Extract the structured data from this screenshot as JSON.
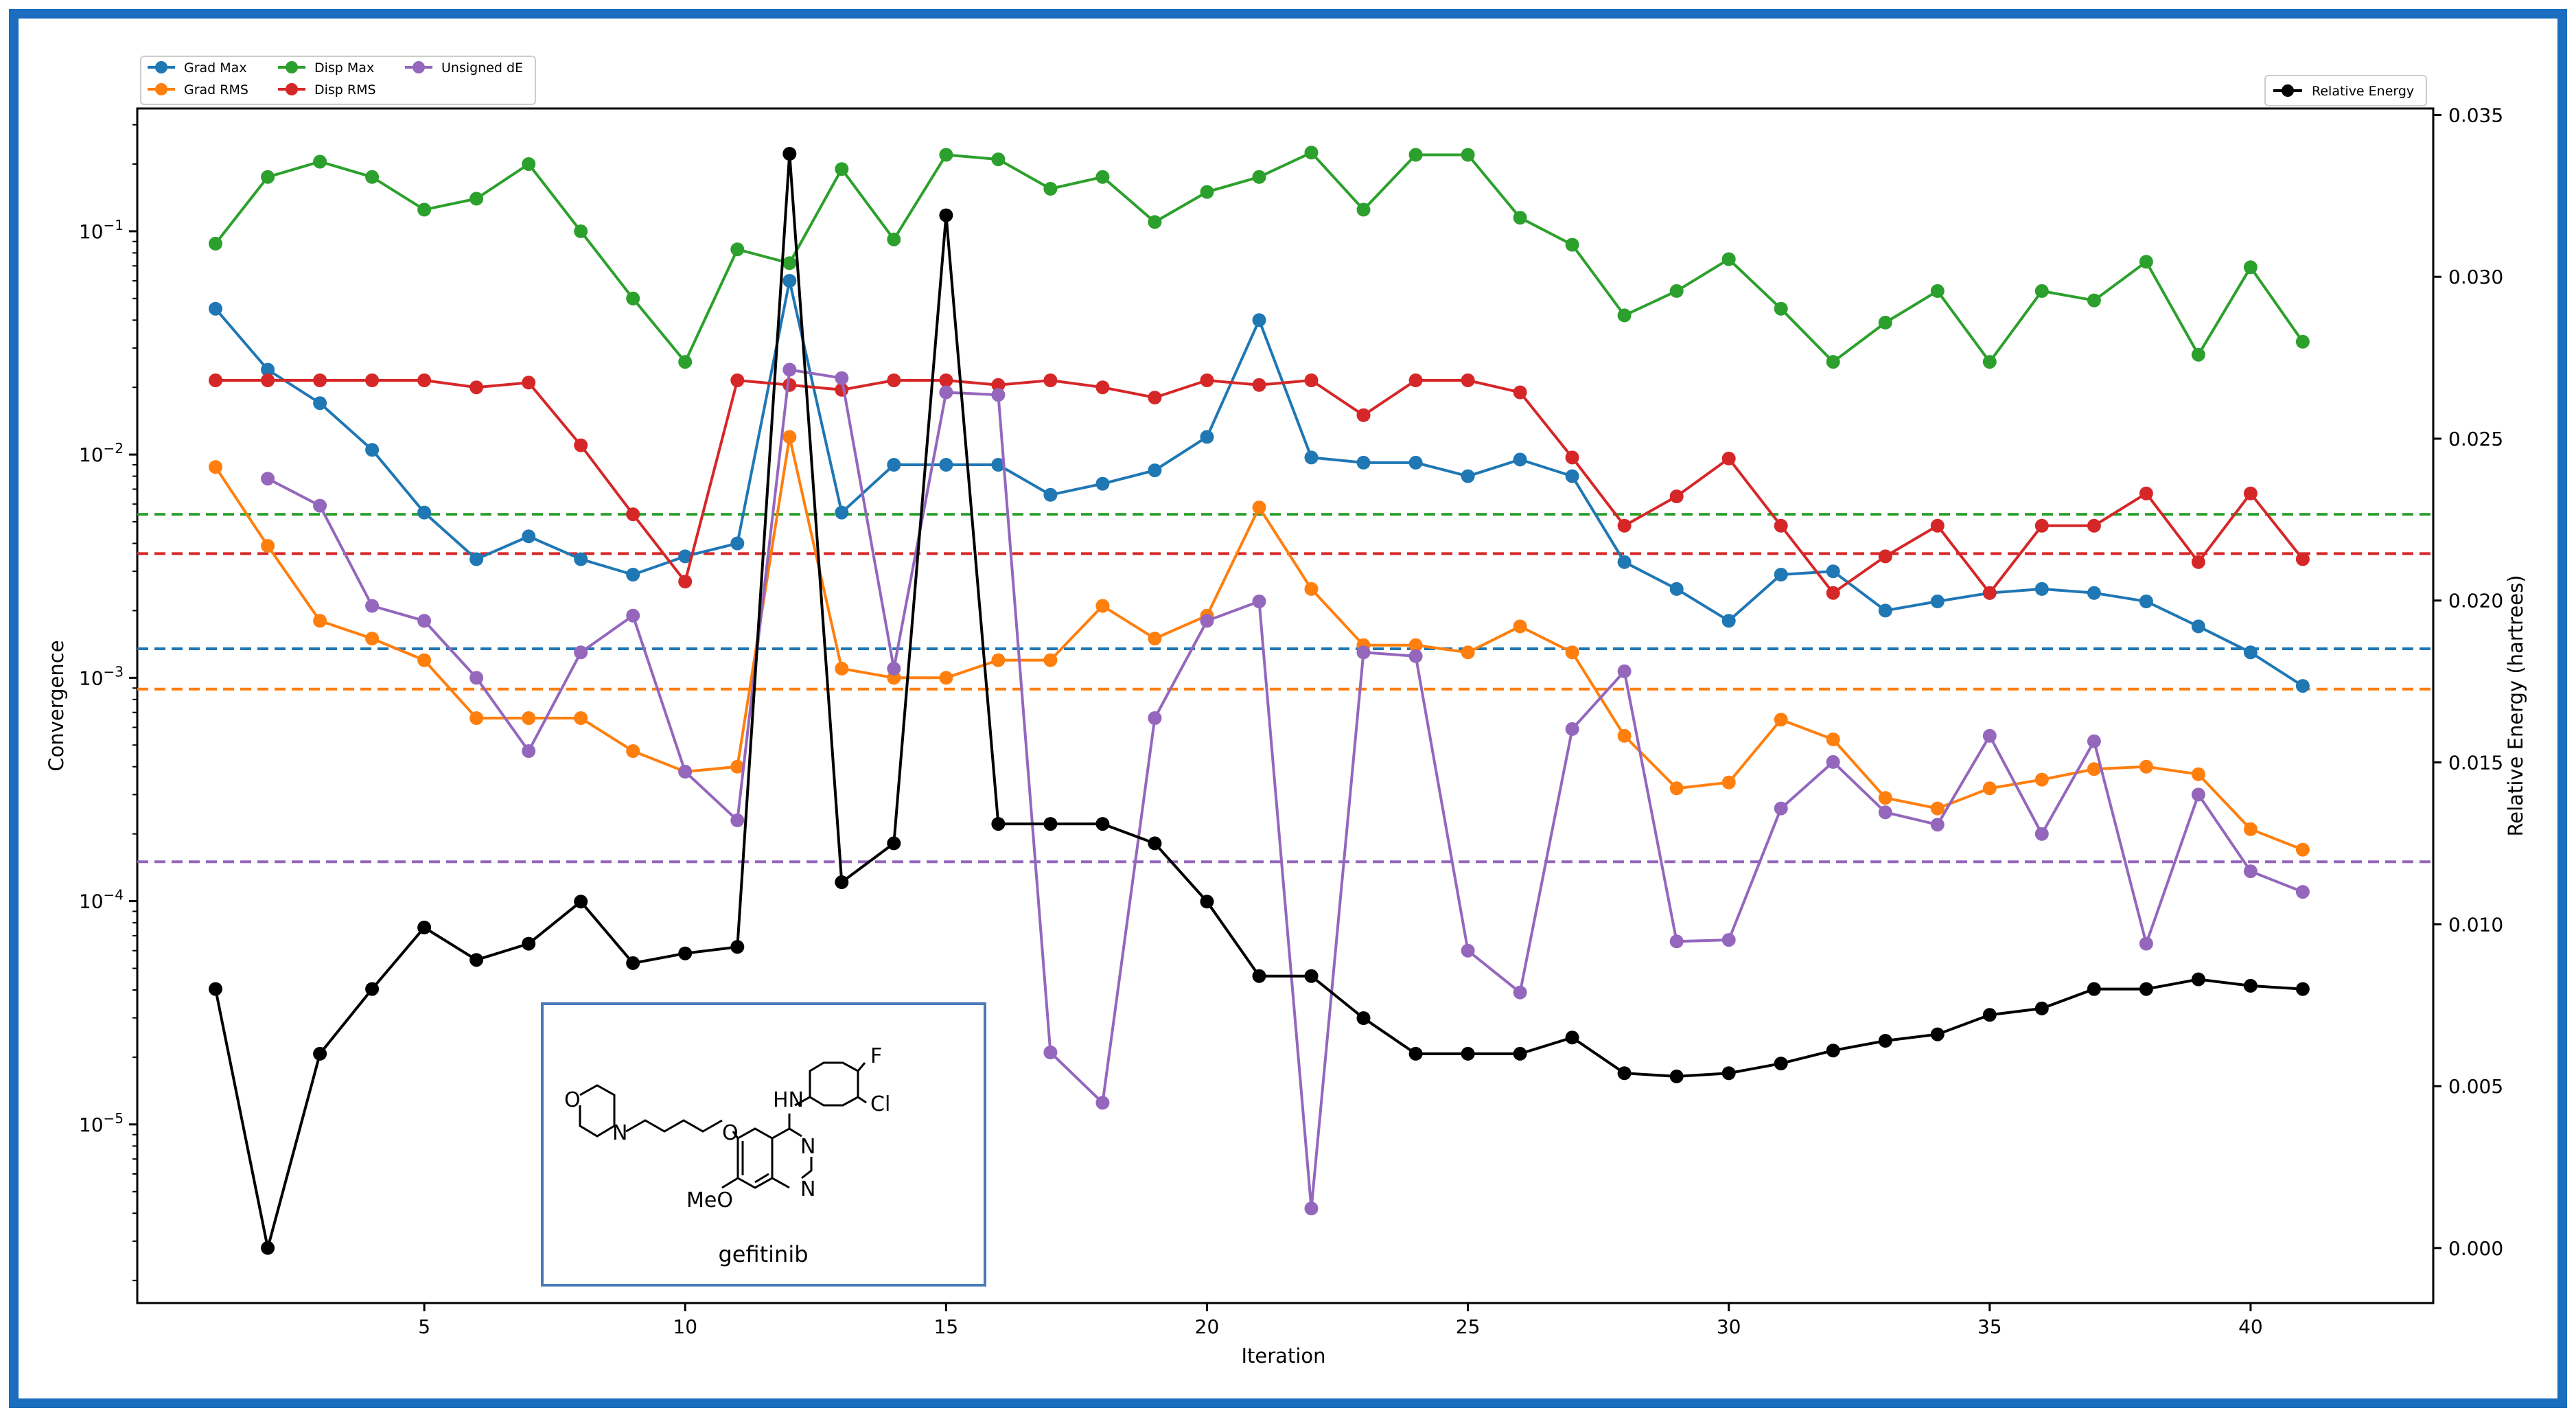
{
  "chart_data": {
    "type": "line",
    "xlabel": "Iteration",
    "ylabel_left": "Convergence",
    "ylabel_right": "Relative Energy (hartrees)",
    "x_ticks": [
      5,
      10,
      15,
      20,
      25,
      30,
      35,
      40
    ],
    "x_range": [
      -0.5,
      43.5
    ],
    "left_axis": {
      "scale": "log",
      "range_log10": [
        -5.8,
        -0.45
      ],
      "tick_exponents": [
        -5,
        -4,
        -3,
        -2,
        -1
      ]
    },
    "right_axis": {
      "scale": "linear",
      "range": [
        -0.0017,
        0.0352
      ],
      "ticks": [
        "0.000",
        "0.005",
        "0.010",
        "0.015",
        "0.020",
        "0.025",
        "0.030",
        "0.035"
      ]
    },
    "series": [
      {
        "name": "Grad Max",
        "color": "#1f77b4",
        "axis": "left",
        "x": [
          1,
          2,
          3,
          4,
          5,
          6,
          7,
          8,
          9,
          10,
          11,
          12,
          13,
          14,
          15,
          16,
          17,
          18,
          19,
          20,
          21,
          22,
          23,
          24,
          25,
          26,
          27,
          28,
          29,
          30,
          31,
          32,
          33,
          34,
          35,
          36,
          37,
          38,
          39,
          40,
          41
        ],
        "values": [
          0.045,
          0.024,
          0.017,
          0.0105,
          0.0055,
          0.0034,
          0.0043,
          0.0034,
          0.0029,
          0.0035,
          0.004,
          0.06,
          0.0055,
          0.009,
          0.009,
          0.009,
          0.0066,
          0.0074,
          0.0085,
          0.012,
          0.04,
          0.0097,
          0.0092,
          0.0092,
          0.008,
          0.0095,
          0.008,
          0.0033,
          0.0025,
          0.0018,
          0.0029,
          0.003,
          0.002,
          0.0022,
          0.0024,
          0.0025,
          0.0024,
          0.0022,
          0.0017,
          0.0013,
          0.00092
        ]
      },
      {
        "name": "Grad RMS",
        "color": "#ff7f0e",
        "axis": "left",
        "x": [
          1,
          2,
          3,
          4,
          5,
          6,
          7,
          8,
          9,
          10,
          11,
          12,
          13,
          14,
          15,
          16,
          17,
          18,
          19,
          20,
          21,
          22,
          23,
          24,
          25,
          26,
          27,
          28,
          29,
          30,
          31,
          32,
          33,
          34,
          35,
          36,
          37,
          38,
          39,
          40,
          41
        ],
        "values": [
          0.0088,
          0.0039,
          0.0018,
          0.0015,
          0.0012,
          0.00066,
          0.00066,
          0.00066,
          0.00047,
          0.00038,
          0.0004,
          0.012,
          0.0011,
          0.001,
          0.001,
          0.0012,
          0.0012,
          0.0021,
          0.0015,
          0.0019,
          0.0058,
          0.0025,
          0.0014,
          0.0014,
          0.0013,
          0.0017,
          0.0013,
          0.00055,
          0.00032,
          0.00034,
          0.00065,
          0.00053,
          0.00029,
          0.00026,
          0.00032,
          0.00035,
          0.00039,
          0.0004,
          0.00037,
          0.00021,
          0.00017
        ]
      },
      {
        "name": "Disp Max",
        "color": "#2ca02c",
        "axis": "left",
        "x": [
          1,
          2,
          3,
          4,
          5,
          6,
          7,
          8,
          9,
          10,
          11,
          12,
          13,
          14,
          15,
          16,
          17,
          18,
          19,
          20,
          21,
          22,
          23,
          24,
          25,
          26,
          27,
          28,
          29,
          30,
          31,
          32,
          33,
          34,
          35,
          36,
          37,
          38,
          39,
          40,
          41
        ],
        "values": [
          0.088,
          0.175,
          0.205,
          0.175,
          0.125,
          0.14,
          0.2,
          0.1,
          0.05,
          0.026,
          0.083,
          0.072,
          0.19,
          0.092,
          0.22,
          0.21,
          0.155,
          0.175,
          0.11,
          0.15,
          0.175,
          0.225,
          0.125,
          0.22,
          0.22,
          0.115,
          0.087,
          0.042,
          0.054,
          0.075,
          0.045,
          0.026,
          0.039,
          0.054,
          0.026,
          0.054,
          0.049,
          0.073,
          0.028,
          0.069,
          0.032
        ]
      },
      {
        "name": "Disp RMS",
        "color": "#d62728",
        "axis": "left",
        "x": [
          1,
          2,
          3,
          4,
          5,
          6,
          7,
          8,
          9,
          10,
          11,
          12,
          13,
          14,
          15,
          16,
          17,
          18,
          19,
          20,
          21,
          22,
          23,
          24,
          25,
          26,
          27,
          28,
          29,
          30,
          31,
          32,
          33,
          34,
          35,
          36,
          37,
          38,
          39,
          40,
          41
        ],
        "values": [
          0.0215,
          0.0215,
          0.0215,
          0.0215,
          0.0215,
          0.02,
          0.021,
          0.011,
          0.0054,
          0.0027,
          0.0215,
          0.0205,
          0.0195,
          0.0215,
          0.0215,
          0.0205,
          0.0215,
          0.02,
          0.018,
          0.0215,
          0.0205,
          0.0215,
          0.015,
          0.0215,
          0.0215,
          0.019,
          0.0097,
          0.0048,
          0.0065,
          0.0096,
          0.0048,
          0.0024,
          0.0035,
          0.0048,
          0.0024,
          0.0048,
          0.0048,
          0.0067,
          0.0033,
          0.0067,
          0.0034
        ]
      },
      {
        "name": "Unsigned dE",
        "color": "#9467bd",
        "axis": "left",
        "x": [
          2,
          3,
          4,
          5,
          6,
          7,
          8,
          9,
          10,
          11,
          12,
          13,
          14,
          15,
          16,
          17,
          18,
          19,
          20,
          21,
          22,
          23,
          24,
          25,
          26,
          27,
          28,
          29,
          30,
          31,
          32,
          33,
          34,
          35,
          36,
          37,
          38,
          39,
          40,
          41
        ],
        "values": [
          0.0078,
          0.0059,
          0.0021,
          0.0018,
          0.001,
          0.00047,
          0.0013,
          0.0019,
          0.00038,
          0.00023,
          0.024,
          0.022,
          0.0011,
          0.019,
          0.0185,
          2.1e-05,
          1.25e-05,
          0.00066,
          0.0018,
          0.0022,
          4.2e-06,
          0.0013,
          0.00125,
          6e-05,
          3.9e-05,
          0.00059,
          0.00107,
          6.6e-05,
          6.7e-05,
          0.00026,
          0.00042,
          0.00025,
          0.00022,
          0.00055,
          0.0002,
          0.00052,
          6.45e-05,
          0.0003,
          0.000136,
          0.00011
        ]
      },
      {
        "name": "Relative Energy",
        "color": "#000000",
        "axis": "right",
        "x": [
          1,
          2,
          3,
          4,
          5,
          6,
          7,
          8,
          9,
          10,
          11,
          12,
          13,
          14,
          15,
          16,
          17,
          18,
          19,
          20,
          21,
          22,
          23,
          24,
          25,
          26,
          27,
          28,
          29,
          30,
          31,
          32,
          33,
          34,
          35,
          36,
          37,
          38,
          39,
          40,
          41
        ],
        "values": [
          0.008,
          0.0,
          0.006,
          0.008,
          0.0099,
          0.0089,
          0.0094,
          0.0107,
          0.0088,
          0.0091,
          0.0093,
          0.0338,
          0.0113,
          0.0125,
          0.0319,
          0.0131,
          0.0131,
          0.0131,
          0.0125,
          0.0107,
          0.0084,
          0.0084,
          0.0071,
          0.006,
          0.006,
          0.006,
          0.0065,
          0.0054,
          0.0053,
          0.0054,
          0.0057,
          0.0061,
          0.0064,
          0.0066,
          0.0072,
          0.0074,
          0.008,
          0.008,
          0.0083,
          0.0081,
          0.008
        ]
      }
    ],
    "thresholds": [
      {
        "name": "Disp Max threshold",
        "color": "#2ca02c",
        "value": 0.0054
      },
      {
        "name": "Disp RMS threshold",
        "color": "#d62728",
        "value": 0.0036
      },
      {
        "name": "Grad Max threshold",
        "color": "#1f77b4",
        "value": 0.00135
      },
      {
        "name": "Grad RMS threshold",
        "color": "#ff7f0e",
        "value": 0.00089
      },
      {
        "name": "Unsigned dE threshold",
        "color": "#9467bd",
        "value": 0.00015
      }
    ],
    "legend_left": [
      "Grad Max",
      "Grad RMS",
      "Disp Max",
      "Disp RMS",
      "Unsigned dE"
    ],
    "legend_right": [
      "Relative Energy"
    ],
    "inset": {
      "caption": "gefitinib",
      "labels": {
        "fluoro": "F",
        "chloro": "Cl",
        "amine": "HN",
        "oxygen_ring": "O",
        "nitrogen_ring": "N",
        "ether_oxygen": "O",
        "methoxy": "MeO",
        "n1": "N",
        "n3": "N"
      }
    }
  },
  "colors": {
    "frame_border": "#1a6dbf",
    "inset_border": "#4a7ab8"
  }
}
